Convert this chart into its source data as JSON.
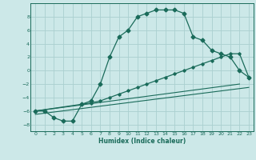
{
  "xlabel": "Humidex (Indice chaleur)",
  "bg_color": "#cce8e8",
  "line_color": "#1a6b5a",
  "grid_color": "#aad0d0",
  "xlim": [
    -0.5,
    23.5
  ],
  "ylim": [
    -9,
    10
  ],
  "xticks": [
    0,
    1,
    2,
    3,
    4,
    5,
    6,
    7,
    8,
    9,
    10,
    11,
    12,
    13,
    14,
    15,
    16,
    17,
    18,
    19,
    20,
    21,
    22,
    23
  ],
  "yticks": [
    -8,
    -6,
    -4,
    -2,
    0,
    2,
    4,
    6,
    8
  ],
  "curve1_x": [
    0,
    1,
    2,
    3,
    4,
    5,
    6,
    7,
    8,
    9,
    10,
    11,
    12,
    13,
    14,
    15,
    16,
    17,
    18,
    19,
    20,
    21,
    22,
    23
  ],
  "curve1_y": [
    -6,
    -6,
    -7,
    -7.5,
    -7.5,
    -5,
    -4.5,
    -2,
    2,
    5,
    6,
    8,
    8.5,
    9,
    9,
    9,
    8.5,
    5,
    4.5,
    3,
    2.5,
    2,
    0,
    -1
  ],
  "curve2_x": [
    0,
    5,
    6,
    7,
    8,
    9,
    10,
    11,
    12,
    13,
    14,
    15,
    16,
    17,
    18,
    19,
    20,
    21,
    22,
    23
  ],
  "curve2_y": [
    -6,
    -5,
    -4.8,
    -4.5,
    -4,
    -3.5,
    -3,
    -2.5,
    -2,
    -1.5,
    -1,
    -0.5,
    0,
    0.5,
    1,
    1.5,
    2,
    2.5,
    2.5,
    -1
  ],
  "curve3_x": [
    0,
    22
  ],
  "curve3_y": [
    -6,
    -2.0
  ],
  "curve4_x": [
    0,
    23
  ],
  "curve4_y": [
    -6.5,
    -2.5
  ]
}
